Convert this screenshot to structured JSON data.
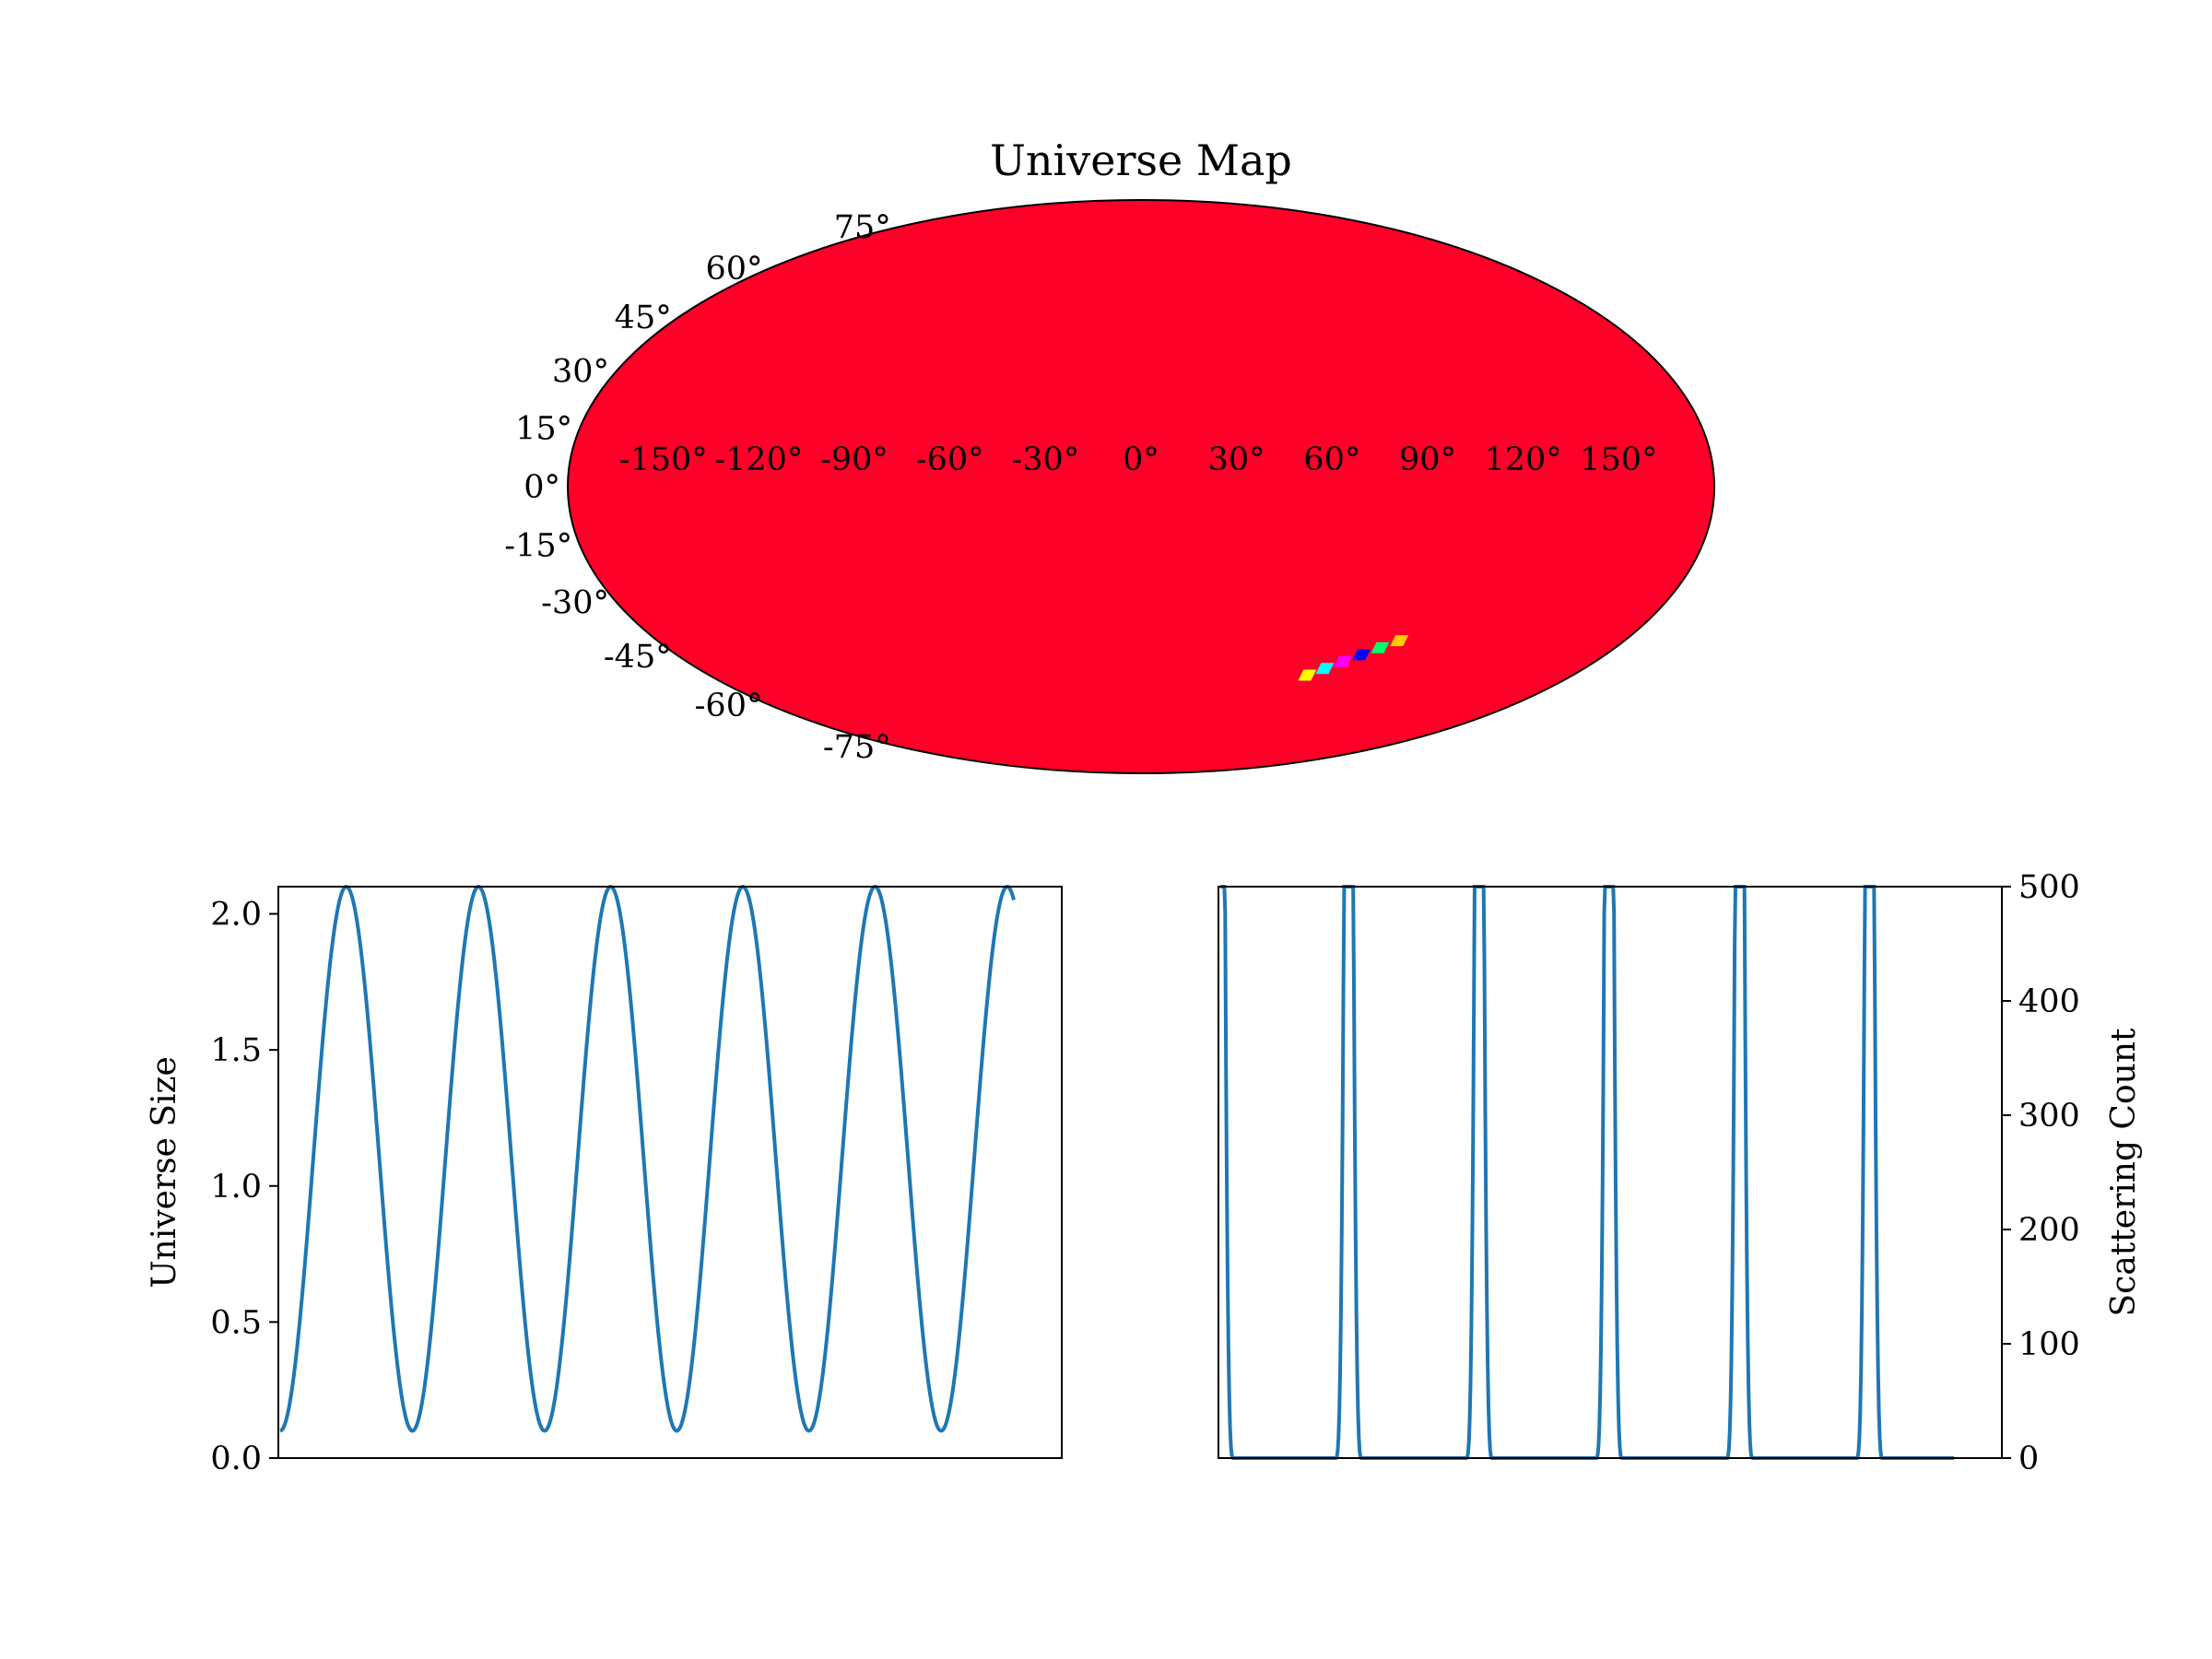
{
  "chart_data": [
    {
      "type": "heatmap",
      "title": "Universe Map",
      "projection": "mollweide",
      "background_color": "#ff0028",
      "longitude_ticks": [
        "-150°",
        "-120°",
        "-90°",
        "-60°",
        "-30°",
        "0°",
        "30°",
        "60°",
        "90°",
        "120°",
        "150°"
      ],
      "longitude_values": [
        -150,
        -120,
        -90,
        -60,
        -30,
        0,
        30,
        60,
        90,
        120,
        150
      ],
      "latitude_ticks": [
        "75°",
        "60°",
        "45°",
        "30°",
        "15°",
        "0°",
        "-15°",
        "-30°",
        "-45°",
        "-60°",
        "-75°"
      ],
      "latitude_values": [
        75,
        60,
        45,
        30,
        15,
        0,
        -15,
        -30,
        -45,
        -60,
        -75
      ],
      "patch": {
        "lon_range": [
          68,
          95
        ],
        "lat_range": [
          -50,
          -40
        ],
        "colors": [
          "#ffff00",
          "#00ffff",
          "#ff00ff",
          "#0000ff",
          "#00ff66",
          "#ffcc00"
        ]
      }
    },
    {
      "type": "line",
      "xlabel": "",
      "ylabel": "Universe Size",
      "ylim": [
        0,
        2.1
      ],
      "yticks": [
        "0.0",
        "0.5",
        "1.0",
        "1.5",
        "2.0"
      ],
      "ytick_values": [
        0,
        0.5,
        1.0,
        1.5,
        2.0
      ],
      "xticks": [],
      "grid": false,
      "color": "#1f77b4",
      "series": [
        {
          "function": "oscillation",
          "min": 0.1,
          "max": 2.1,
          "cycles": 5.55,
          "start_phase": "minimum"
        }
      ]
    },
    {
      "type": "line",
      "xlabel": "",
      "ylabel": "Scattering Count",
      "yaxis_side": "right",
      "ylim": [
        0,
        500
      ],
      "yticks": [
        "0",
        "100",
        "200",
        "300",
        "400",
        "500"
      ],
      "ytick_values": [
        0,
        100,
        200,
        300,
        400,
        500
      ],
      "xticks": [],
      "grid": false,
      "color": "#1f77b4",
      "series": [
        {
          "function": "pulses",
          "peak": 500,
          "base": 0,
          "pulse_centers": [
            0.0,
            0.175,
            0.353,
            0.53,
            0.708,
            0.885
          ]
        }
      ]
    }
  ]
}
